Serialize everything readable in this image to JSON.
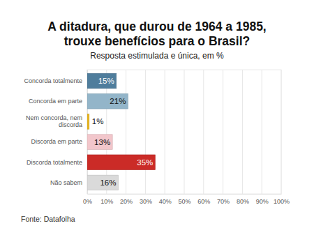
{
  "chart_data": {
    "type": "bar",
    "orientation": "horizontal",
    "title": [
      "A ditadura, que durou de 1964 a 1985,",
      "trouxe benefícios para o Brasil?"
    ],
    "subtitle": "Resposta estimulada e única, em %",
    "source": "Fonte: Datafolha",
    "categories": [
      "Concorda totalmente",
      "Concorda em parte",
      "Nem concorda, nem discorda",
      "Discorda em parte",
      "Discorda totalmente",
      "Não sabem"
    ],
    "values": [
      15,
      21,
      1,
      13,
      35,
      16
    ],
    "value_labels": [
      "15%",
      "21%",
      "1%",
      "13%",
      "35%",
      "16%"
    ],
    "colors": [
      "#4f7d9c",
      "#93b5c9",
      "#e8b51e",
      "#f2c6cb",
      "#cb2b27",
      "#dadada"
    ],
    "data_labels": true,
    "xlim": [
      0,
      100
    ],
    "xticks": [
      {
        "value": 0,
        "label": "0%"
      },
      {
        "value": 10,
        "label": "10%"
      },
      {
        "value": 20,
        "label": "20%"
      },
      {
        "value": 30,
        "label": "30%"
      },
      {
        "value": 40,
        "label": "40%"
      },
      {
        "value": 50,
        "label": "50%"
      },
      {
        "value": 60,
        "label": "60%"
      },
      {
        "value": 70,
        "label": "70%"
      },
      {
        "value": 80,
        "label": "80%"
      },
      {
        "value": 90,
        "label": "90%"
      },
      {
        "value": 100,
        "label": "100%"
      }
    ],
    "grid": true
  }
}
